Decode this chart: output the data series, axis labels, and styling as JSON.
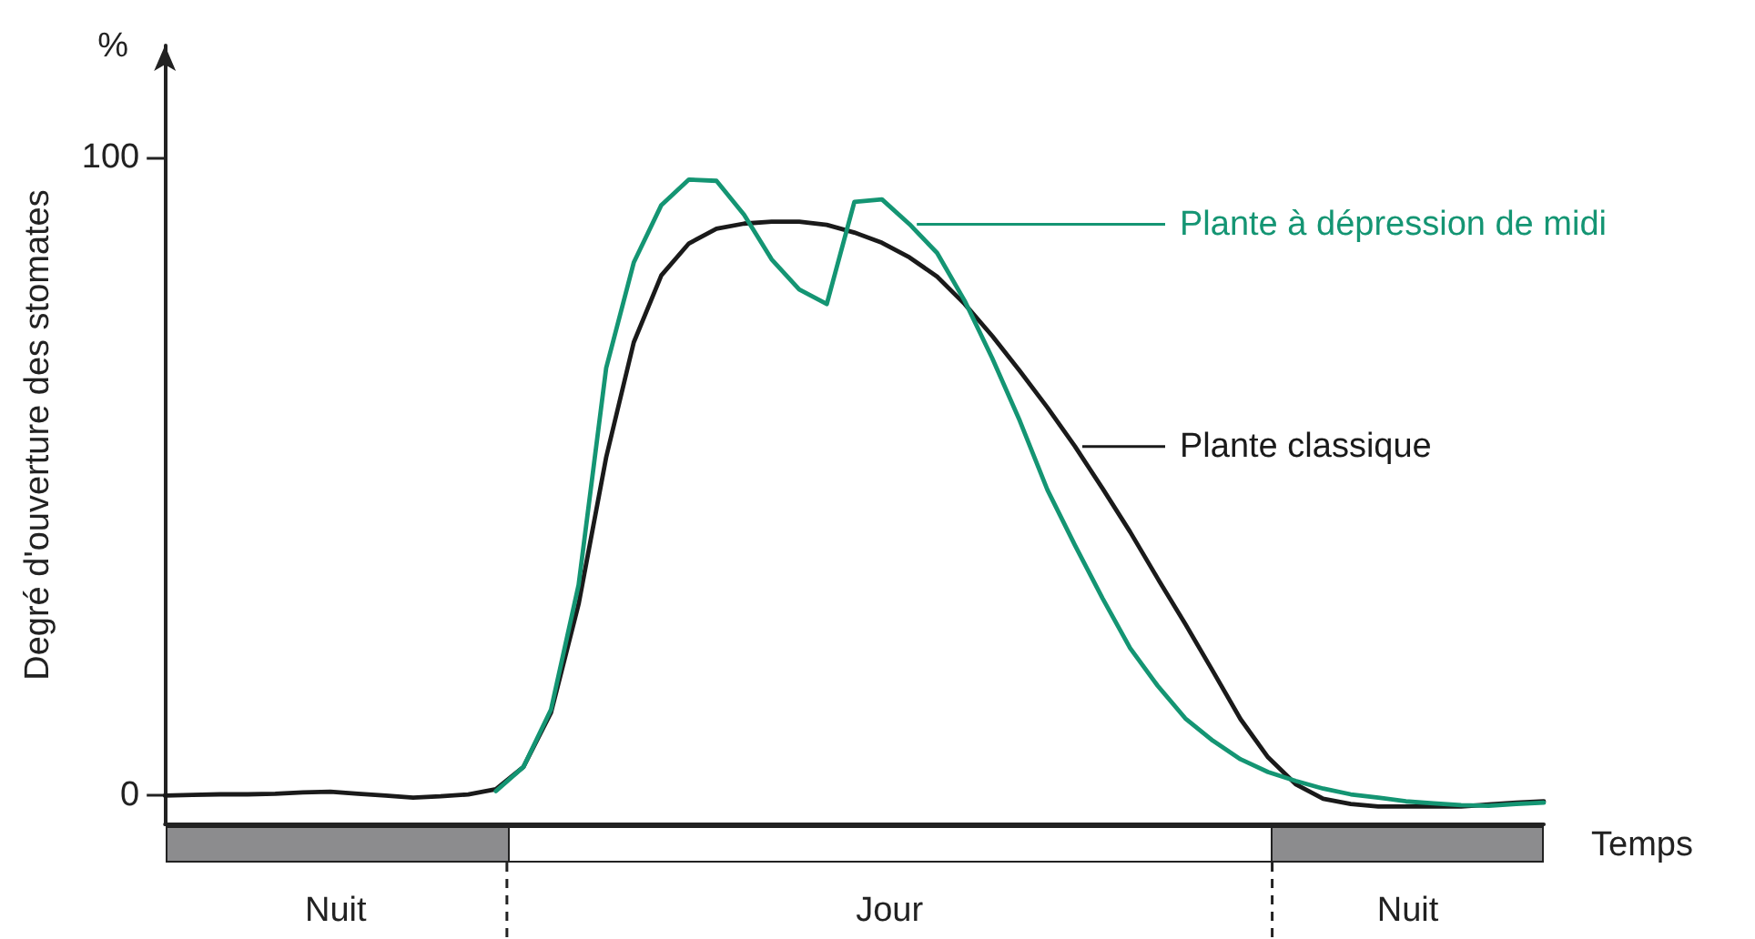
{
  "chart_data": {
    "type": "line",
    "xlabel": "Temps",
    "ylabel": "Degré d'ouverture des stomates",
    "annotations": [
      "%",
      "Nuit",
      "Jour",
      "Nuit"
    ],
    "categories": [
      null,
      null,
      null,
      null,
      null,
      null,
      null,
      null,
      null,
      null,
      null,
      null,
      null,
      null,
      null,
      null,
      null,
      null,
      null,
      null,
      null,
      null,
      null,
      null,
      null,
      null,
      null,
      null,
      null,
      null,
      null,
      null,
      null,
      null,
      null,
      null,
      null,
      null,
      null,
      null,
      null,
      null,
      null,
      null,
      null,
      null,
      null,
      null,
      null,
      null,
      null
    ],
    "ylim": [
      -4.5,
      117.5
    ],
    "yticks": [
      0,
      100
    ],
    "grid": false,
    "legend": "right",
    "marker": "none",
    "line_style": "solid",
    "series": [
      {
        "name": "Plante classique",
        "color": "#1a1a1a",
        "values": [
          0,
          0.1,
          0.2,
          0.2,
          0.3,
          0.5,
          0.6,
          0.3,
          0,
          -0.3,
          -0.1,
          0.2,
          1,
          4.5,
          13,
          30,
          53,
          71,
          81.5,
          86.5,
          88.8,
          89.6,
          89.9,
          89.9,
          89.4,
          88.2,
          86.6,
          84.3,
          81.3,
          77,
          72,
          66.5,
          60.8,
          54.7,
          48.1,
          41.3,
          34,
          26.9,
          19.5,
          12,
          6,
          1.8,
          -0.5,
          -1.3,
          -1.7,
          -1.7,
          -1.7,
          -1.7,
          -1.4,
          -1.1,
          -0.9
        ]
      },
      {
        "name": "Plante à dépression de midi",
        "color": "#149573",
        "values": [
          null,
          null,
          null,
          null,
          null,
          null,
          null,
          null,
          null,
          null,
          null,
          null,
          0.7,
          4.5,
          13.5,
          33,
          67,
          83.5,
          92.5,
          96.5,
          96.3,
          91,
          84,
          79.3,
          77,
          93,
          93.4,
          89.5,
          85,
          77.5,
          68.5,
          58.7,
          47.9,
          39.2,
          30.9,
          23.1,
          17.2,
          12.1,
          8.6,
          5.7,
          3.7,
          2.3,
          1.1,
          0.2,
          -0.3,
          -0.9,
          -1.2,
          -1.5,
          -1.6,
          -1.3,
          -1.1
        ]
      }
    ]
  }
}
